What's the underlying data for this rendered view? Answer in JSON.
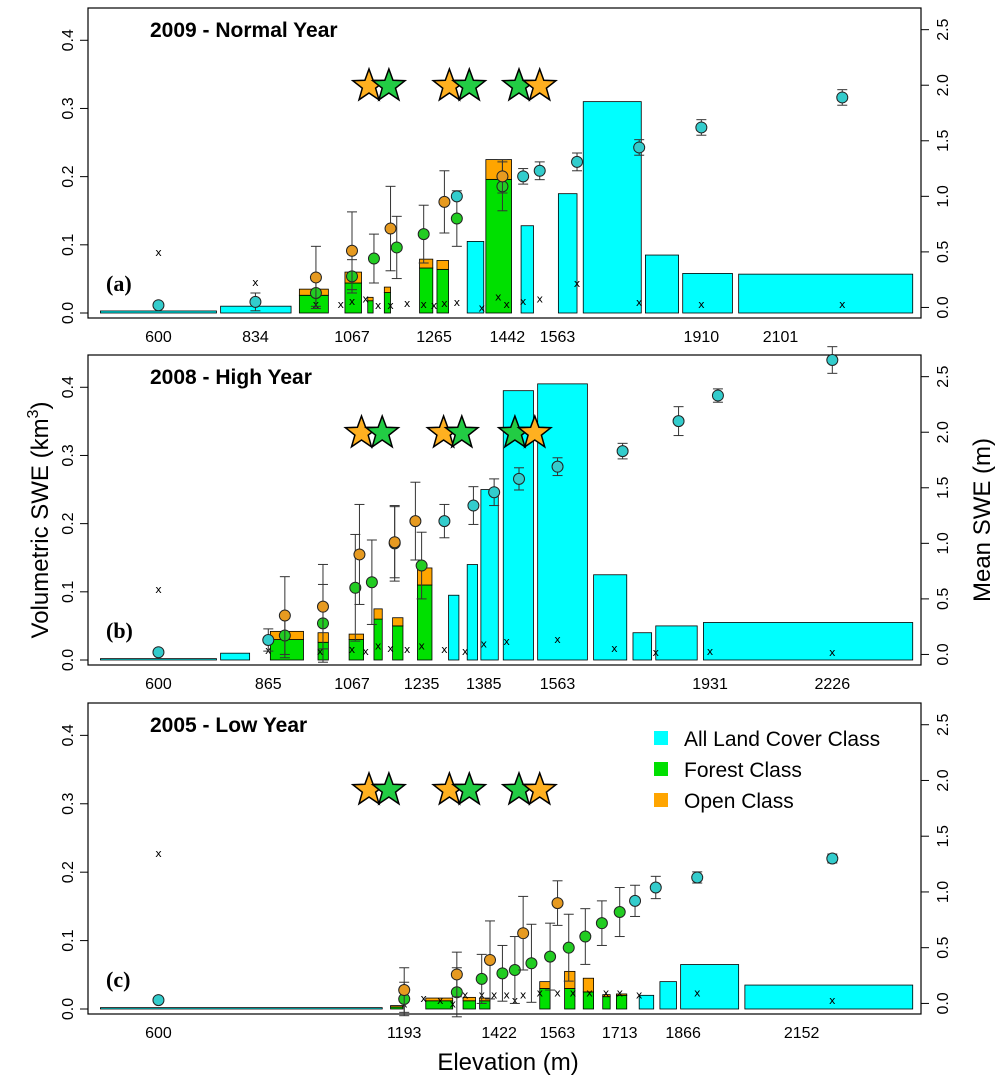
{
  "figure": {
    "y_left_label": "Volumetric SWE  (km",
    "y_left_label_sup": "3",
    "y_left_label_close": ")",
    "y_right_label": "Mean SWE (m)",
    "x_label": "Elevation (m)"
  },
  "legend": {
    "items": [
      {
        "label": "All Land Cover Class",
        "color": "#00ffff"
      },
      {
        "label": "Forest Class",
        "color": "#00e000"
      },
      {
        "label": "Open Class",
        "color": "#ffa500"
      }
    ]
  },
  "colors": {
    "all": "#00ffff",
    "forest": "#00e000",
    "open": "#ffa500",
    "all_point": "#33cccc",
    "forest_point": "#22cc22",
    "open_point": "#e69a20",
    "star_open": "#ffb020",
    "star_forest": "#22cc44"
  },
  "chart_data": [
    {
      "type": "bar",
      "panel_label": "(a)",
      "title": "2009 - Normal Year",
      "ylim": [
        0,
        0.44
      ],
      "yticks": [
        0.0,
        0.1,
        0.2,
        0.3,
        0.4
      ],
      "ylim_right": [
        -0.05,
        2.65
      ],
      "yticks_right": [
        0.0,
        0.5,
        1.0,
        1.5,
        2.0,
        2.5
      ],
      "xlim": [
        430,
        2440
      ],
      "xtick_labels": [
        "600",
        "834",
        "1067",
        "1265",
        "1442",
        "1563",
        "1910",
        "2101"
      ],
      "xtick_values": [
        600,
        834,
        1067,
        1265,
        1442,
        1563,
        1910,
        2101
      ],
      "stars": [
        {
          "elev": 1108,
          "class": "open"
        },
        {
          "elev": 1156,
          "class": "forest"
        },
        {
          "elev": 1302,
          "class": "open"
        },
        {
          "elev": 1350,
          "class": "forest"
        },
        {
          "elev": 1470,
          "class": "forest"
        },
        {
          "elev": 1520,
          "class": "open"
        }
      ],
      "all_bars": [
        {
          "x0": 460,
          "x1": 740,
          "value": 0.003
        },
        {
          "x0": 750,
          "x1": 920,
          "value": 0.01
        },
        {
          "x0": 1345,
          "x1": 1385,
          "value": 0.105
        },
        {
          "x0": 1475,
          "x1": 1505,
          "value": 0.128
        },
        {
          "x0": 1565,
          "x1": 1610,
          "value": 0.175
        },
        {
          "x0": 1625,
          "x1": 1765,
          "value": 0.31
        },
        {
          "x0": 1775,
          "x1": 1855,
          "value": 0.085
        },
        {
          "x0": 1865,
          "x1": 1985,
          "value": 0.058
        },
        {
          "x0": 2000,
          "x1": 2420,
          "value": 0.057
        }
      ],
      "stacked_bars": [
        {
          "x0": 940,
          "x1": 1010,
          "forest": 0.026,
          "open": 0.009
        },
        {
          "x0": 1050,
          "x1": 1090,
          "forest": 0.044,
          "open": 0.016
        },
        {
          "x0": 1105,
          "x1": 1118,
          "forest": 0.018,
          "open": 0.005
        },
        {
          "x0": 1145,
          "x1": 1160,
          "forest": 0.03,
          "open": 0.008
        },
        {
          "x0": 1230,
          "x1": 1262,
          "forest": 0.066,
          "open": 0.013
        },
        {
          "x0": 1272,
          "x1": 1300,
          "forest": 0.064,
          "open": 0.013
        },
        {
          "x0": 1390,
          "x1": 1452,
          "forest": 0.196,
          "open": 0.029
        }
      ],
      "all_points": [
        {
          "x": 600,
          "mean": 0.02,
          "err": 0.02
        },
        {
          "x": 834,
          "mean": 0.05,
          "err": 0.08
        },
        {
          "x": 1320,
          "mean": 1.0,
          "err": 0.0
        },
        {
          "x": 1480,
          "mean": 1.18,
          "err": 0.07
        },
        {
          "x": 1520,
          "mean": 1.23,
          "err": 0.08
        },
        {
          "x": 1610,
          "mean": 1.31,
          "err": 0.08
        },
        {
          "x": 1760,
          "mean": 1.44,
          "err": 0.07
        },
        {
          "x": 1910,
          "mean": 1.62,
          "err": 0.07
        },
        {
          "x": 2250,
          "mean": 1.89,
          "err": 0.07
        }
      ],
      "forest_points": [
        {
          "x": 980,
          "mean": 0.13,
          "err": 0.12
        },
        {
          "x": 1067,
          "mean": 0.28,
          "err": 0.15
        },
        {
          "x": 1120,
          "mean": 0.44,
          "err": 0.22
        },
        {
          "x": 1175,
          "mean": 0.54,
          "err": 0.28
        },
        {
          "x": 1240,
          "mean": 0.66,
          "err": 0.26
        },
        {
          "x": 1320,
          "mean": 0.8,
          "err": 0.25
        },
        {
          "x": 1430,
          "mean": 1.09,
          "err": 0.22
        }
      ],
      "open_points": [
        {
          "x": 980,
          "mean": 0.27,
          "err": 0.28
        },
        {
          "x": 1067,
          "mean": 0.51,
          "err": 0.35
        },
        {
          "x": 1160,
          "mean": 0.71,
          "err": 0.38
        },
        {
          "x": 1290,
          "mean": 0.95,
          "err": 0.28
        },
        {
          "x": 1430,
          "mean": 1.18,
          "err": 0.15
        }
      ],
      "cv_marks": [
        {
          "x": 600,
          "value": 0.5
        },
        {
          "x": 834,
          "value": 0.23
        },
        {
          "x": 980,
          "value": 0.03
        },
        {
          "x": 1040,
          "value": 0.03
        },
        {
          "x": 1067,
          "value": 0.06
        },
        {
          "x": 1100,
          "value": 0.08
        },
        {
          "x": 1130,
          "value": 0.02
        },
        {
          "x": 1160,
          "value": 0.02
        },
        {
          "x": 1200,
          "value": 0.04
        },
        {
          "x": 1240,
          "value": 0.03
        },
        {
          "x": 1265,
          "value": 0.02
        },
        {
          "x": 1290,
          "value": 0.04
        },
        {
          "x": 1320,
          "value": 0.05
        },
        {
          "x": 1380,
          "value": 0.0
        },
        {
          "x": 1420,
          "value": 0.1
        },
        {
          "x": 1440,
          "value": 0.03
        },
        {
          "x": 1480,
          "value": 0.06
        },
        {
          "x": 1520,
          "value": 0.08
        },
        {
          "x": 1610,
          "value": 0.22
        },
        {
          "x": 1760,
          "value": 0.05
        },
        {
          "x": 1910,
          "value": 0.03
        },
        {
          "x": 2250,
          "value": 0.03
        }
      ]
    },
    {
      "type": "bar",
      "panel_label": "(b)",
      "title": "2008 - High Year",
      "ylim": [
        0,
        0.44
      ],
      "yticks": [
        0.0,
        0.1,
        0.2,
        0.3,
        0.4
      ],
      "ylim_right": [
        -0.05,
        2.65
      ],
      "yticks_right": [
        0.0,
        0.5,
        1.0,
        1.5,
        2.0,
        2.5
      ],
      "xlim": [
        430,
        2440
      ],
      "xtick_labels": [
        "600",
        "865",
        "1067",
        "1235",
        "1385",
        "1563",
        "1931",
        "2226"
      ],
      "xtick_values": [
        600,
        865,
        1067,
        1235,
        1385,
        1563,
        1931,
        2226
      ],
      "stars": [
        {
          "elev": 1090,
          "class": "open"
        },
        {
          "elev": 1140,
          "class": "forest"
        },
        {
          "elev": 1288,
          "class": "open"
        },
        {
          "elev": 1332,
          "class": "forest"
        },
        {
          "elev": 1460,
          "class": "forest"
        },
        {
          "elev": 1508,
          "class": "open"
        }
      ],
      "all_bars": [
        {
          "x0": 460,
          "x1": 740,
          "value": 0.002
        },
        {
          "x0": 750,
          "x1": 820,
          "value": 0.01
        },
        {
          "x0": 1300,
          "x1": 1325,
          "value": 0.095
        },
        {
          "x0": 1345,
          "x1": 1370,
          "value": 0.14
        },
        {
          "x0": 1378,
          "x1": 1420,
          "value": 0.25
        },
        {
          "x0": 1432,
          "x1": 1505,
          "value": 0.395
        },
        {
          "x0": 1515,
          "x1": 1635,
          "value": 0.405
        },
        {
          "x0": 1650,
          "x1": 1730,
          "value": 0.125
        },
        {
          "x0": 1745,
          "x1": 1790,
          "value": 0.04
        },
        {
          "x0": 1800,
          "x1": 1900,
          "value": 0.05
        },
        {
          "x0": 1915,
          "x1": 2420,
          "value": 0.055
        }
      ],
      "stacked_bars": [
        {
          "x0": 870,
          "x1": 950,
          "forest": 0.03,
          "open": 0.012
        },
        {
          "x0": 985,
          "x1": 1010,
          "forest": 0.026,
          "open": 0.014
        },
        {
          "x0": 1060,
          "x1": 1095,
          "forest": 0.03,
          "open": 0.008
        },
        {
          "x0": 1120,
          "x1": 1140,
          "forest": 0.06,
          "open": 0.015
        },
        {
          "x0": 1165,
          "x1": 1190,
          "forest": 0.05,
          "open": 0.012
        },
        {
          "x0": 1225,
          "x1": 1260,
          "forest": 0.11,
          "open": 0.025
        }
      ],
      "all_points": [
        {
          "x": 600,
          "mean": 0.02,
          "err": 0.02
        },
        {
          "x": 865,
          "mean": 0.13,
          "err": 0.1
        },
        {
          "x": 1290,
          "mean": 1.2,
          "err": 0.15
        },
        {
          "x": 1360,
          "mean": 1.34,
          "err": 0.17
        },
        {
          "x": 1410,
          "mean": 1.46,
          "err": 0.12
        },
        {
          "x": 1470,
          "mean": 1.58,
          "err": 0.1
        },
        {
          "x": 1563,
          "mean": 1.69,
          "err": 0.08
        },
        {
          "x": 1720,
          "mean": 1.83,
          "err": 0.07
        },
        {
          "x": 1855,
          "mean": 2.1,
          "err": 0.13
        },
        {
          "x": 1950,
          "mean": 2.33,
          "err": 0.06
        },
        {
          "x": 2226,
          "mean": 2.65,
          "err": 0.12
        }
      ],
      "forest_points": [
        {
          "x": 905,
          "mean": 0.17,
          "err": 0.2
        },
        {
          "x": 997,
          "mean": 0.28,
          "err": 0.35
        },
        {
          "x": 1075,
          "mean": 0.6,
          "err": 0.48
        },
        {
          "x": 1115,
          "mean": 0.65,
          "err": 0.38
        },
        {
          "x": 1170,
          "mean": 1.0,
          "err": 0.34
        },
        {
          "x": 1235,
          "mean": 0.8,
          "err": 0.3
        }
      ],
      "open_points": [
        {
          "x": 905,
          "mean": 0.35,
          "err": 0.35
        },
        {
          "x": 997,
          "mean": 0.43,
          "err": 0.38
        },
        {
          "x": 1085,
          "mean": 0.9,
          "err": 0.45
        },
        {
          "x": 1170,
          "mean": 1.01,
          "err": 0.32
        },
        {
          "x": 1220,
          "mean": 1.2,
          "err": 0.35
        }
      ],
      "cv_marks": [
        {
          "x": 600,
          "value": 0.59
        },
        {
          "x": 865,
          "value": 0.04
        },
        {
          "x": 990,
          "value": 0.03
        },
        {
          "x": 1067,
          "value": 0.05
        },
        {
          "x": 1100,
          "value": 0.03
        },
        {
          "x": 1130,
          "value": 0.08
        },
        {
          "x": 1160,
          "value": 0.06
        },
        {
          "x": 1200,
          "value": 0.05
        },
        {
          "x": 1235,
          "value": 0.08
        },
        {
          "x": 1290,
          "value": 0.05
        },
        {
          "x": 1340,
          "value": 0.03
        },
        {
          "x": 1385,
          "value": 0.1
        },
        {
          "x": 1440,
          "value": 0.12
        },
        {
          "x": 1563,
          "value": 0.14
        },
        {
          "x": 1700,
          "value": 0.06
        },
        {
          "x": 1800,
          "value": 0.02
        },
        {
          "x": 1931,
          "value": 0.03
        },
        {
          "x": 2226,
          "value": 0.02
        }
      ]
    },
    {
      "type": "bar",
      "panel_label": "(c)",
      "title": "2005 - Low Year",
      "ylim": [
        0,
        0.44
      ],
      "yticks": [
        0.0,
        0.1,
        0.2,
        0.3,
        0.4
      ],
      "ylim_right": [
        -0.05,
        2.65
      ],
      "yticks_right": [
        0.0,
        0.5,
        1.0,
        1.5,
        2.0,
        2.5
      ],
      "xlim": [
        430,
        2440
      ],
      "xtick_labels": [
        "600",
        "1193",
        "1422",
        "1563",
        "1713",
        "1866",
        "2152"
      ],
      "xtick_values": [
        600,
        1193,
        1422,
        1563,
        1713,
        1866,
        2152
      ],
      "stars": [
        {
          "elev": 1108,
          "class": "open"
        },
        {
          "elev": 1156,
          "class": "forest"
        },
        {
          "elev": 1302,
          "class": "open"
        },
        {
          "elev": 1350,
          "class": "forest"
        },
        {
          "elev": 1470,
          "class": "forest"
        },
        {
          "elev": 1520,
          "class": "open"
        }
      ],
      "all_bars": [
        {
          "x0": 460,
          "x1": 1140,
          "value": 0.002
        },
        {
          "x0": 1760,
          "x1": 1795,
          "value": 0.02
        },
        {
          "x0": 1810,
          "x1": 1850,
          "value": 0.04
        },
        {
          "x0": 1860,
          "x1": 2000,
          "value": 0.065
        },
        {
          "x0": 2015,
          "x1": 2420,
          "value": 0.035
        }
      ],
      "stacked_bars": [
        {
          "x0": 1160,
          "x1": 1190,
          "forest": 0.003,
          "open": 0.002
        },
        {
          "x0": 1245,
          "x1": 1310,
          "forest": 0.012,
          "open": 0.004
        },
        {
          "x0": 1335,
          "x1": 1365,
          "forest": 0.012,
          "open": 0.005
        },
        {
          "x0": 1375,
          "x1": 1400,
          "forest": 0.012,
          "open": 0.004
        },
        {
          "x0": 1520,
          "x1": 1545,
          "forest": 0.03,
          "open": 0.01
        },
        {
          "x0": 1580,
          "x1": 1605,
          "forest": 0.03,
          "open": 0.025
        },
        {
          "x0": 1625,
          "x1": 1650,
          "forest": 0.025,
          "open": 0.02
        },
        {
          "x0": 1672,
          "x1": 1690,
          "forest": 0.018,
          "open": 0.003
        },
        {
          "x0": 1705,
          "x1": 1730,
          "forest": 0.02,
          "open": 0.002
        }
      ],
      "all_points": [
        {
          "x": 600,
          "mean": 0.03,
          "err": 0.02
        },
        {
          "x": 1750,
          "mean": 0.92,
          "err": 0.14
        },
        {
          "x": 1800,
          "mean": 1.04,
          "err": 0.1
        },
        {
          "x": 1900,
          "mean": 1.13,
          "err": 0.05
        },
        {
          "x": 2226,
          "mean": 1.3,
          "err": 0.04
        }
      ],
      "forest_points": [
        {
          "x": 1193,
          "mean": 0.04,
          "err": 0.15
        },
        {
          "x": 1320,
          "mean": 0.1,
          "err": 0.22
        },
        {
          "x": 1380,
          "mean": 0.22,
          "err": 0.22
        },
        {
          "x": 1430,
          "mean": 0.27,
          "err": 0.25
        },
        {
          "x": 1460,
          "mean": 0.3,
          "err": 0.3
        },
        {
          "x": 1500,
          "mean": 0.36,
          "err": 0.35
        },
        {
          "x": 1545,
          "mean": 0.42,
          "err": 0.3
        },
        {
          "x": 1590,
          "mean": 0.5,
          "err": 0.3
        },
        {
          "x": 1630,
          "mean": 0.6,
          "err": 0.25
        },
        {
          "x": 1670,
          "mean": 0.72,
          "err": 0.2
        },
        {
          "x": 1713,
          "mean": 0.82,
          "err": 0.22
        }
      ],
      "open_points": [
        {
          "x": 1193,
          "mean": 0.12,
          "err": 0.2
        },
        {
          "x": 1320,
          "mean": 0.26,
          "err": 0.2
        },
        {
          "x": 1400,
          "mean": 0.39,
          "err": 0.35
        },
        {
          "x": 1480,
          "mean": 0.63,
          "err": 0.33
        },
        {
          "x": 1563,
          "mean": 0.9,
          "err": 0.2
        }
      ],
      "cv_marks": [
        {
          "x": 600,
          "value": 1.35
        },
        {
          "x": 1193,
          "value": 0.0
        },
        {
          "x": 1240,
          "value": 0.05
        },
        {
          "x": 1280,
          "value": 0.03
        },
        {
          "x": 1310,
          "value": 0.0
        },
        {
          "x": 1340,
          "value": 0.08
        },
        {
          "x": 1380,
          "value": 0.08
        },
        {
          "x": 1410,
          "value": 0.08
        },
        {
          "x": 1440,
          "value": 0.08
        },
        {
          "x": 1460,
          "value": 0.03
        },
        {
          "x": 1480,
          "value": 0.08
        },
        {
          "x": 1520,
          "value": 0.1
        },
        {
          "x": 1563,
          "value": 0.1
        },
        {
          "x": 1600,
          "value": 0.1
        },
        {
          "x": 1640,
          "value": 0.1
        },
        {
          "x": 1680,
          "value": 0.1
        },
        {
          "x": 1713,
          "value": 0.1
        },
        {
          "x": 1760,
          "value": 0.08
        },
        {
          "x": 1900,
          "value": 0.1
        },
        {
          "x": 2226,
          "value": 0.03
        }
      ]
    }
  ]
}
